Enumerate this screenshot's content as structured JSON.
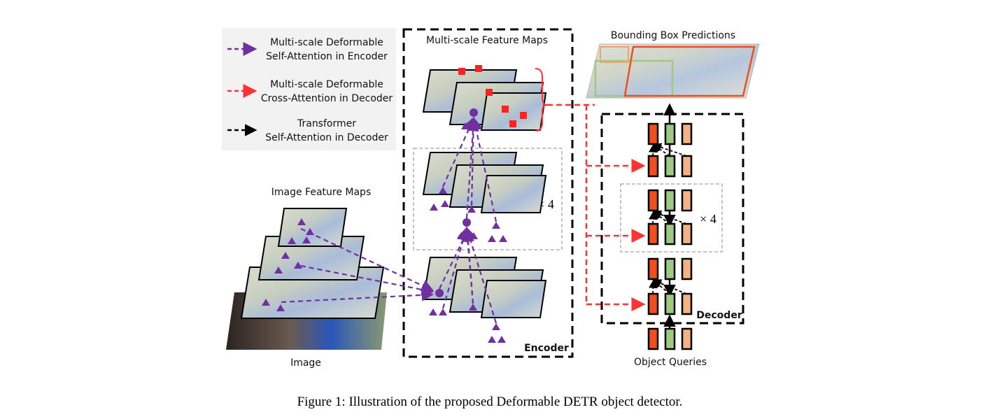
{
  "legend": {
    "items": [
      {
        "line1": "Multi-scale Deformable",
        "line2": "Self-Attention in Encoder",
        "color": "#7030a0"
      },
      {
        "line1": "Multi-scale Deformable",
        "line2": "Cross-Attention in Decoder",
        "color": "#ff3333"
      },
      {
        "line1": "Transformer",
        "line2": "Self-Attention in Decoder",
        "color": "#000000"
      }
    ]
  },
  "image_feature_maps_title": "Image Feature Maps",
  "image_label": "Image",
  "encoder": {
    "title": "Multi-scale Feature Maps",
    "label": "Encoder",
    "repeat": "× 4"
  },
  "decoder": {
    "label": "Decoder",
    "repeat": "× 4",
    "colors": [
      "#f04e1e",
      "#9dc983",
      "#f4b183"
    ]
  },
  "bbox_title": "Bounding Box Predictions",
  "object_queries": "Object Queries",
  "caption": "Figure 1: Illustration of the proposed Deformable DETR object detector."
}
